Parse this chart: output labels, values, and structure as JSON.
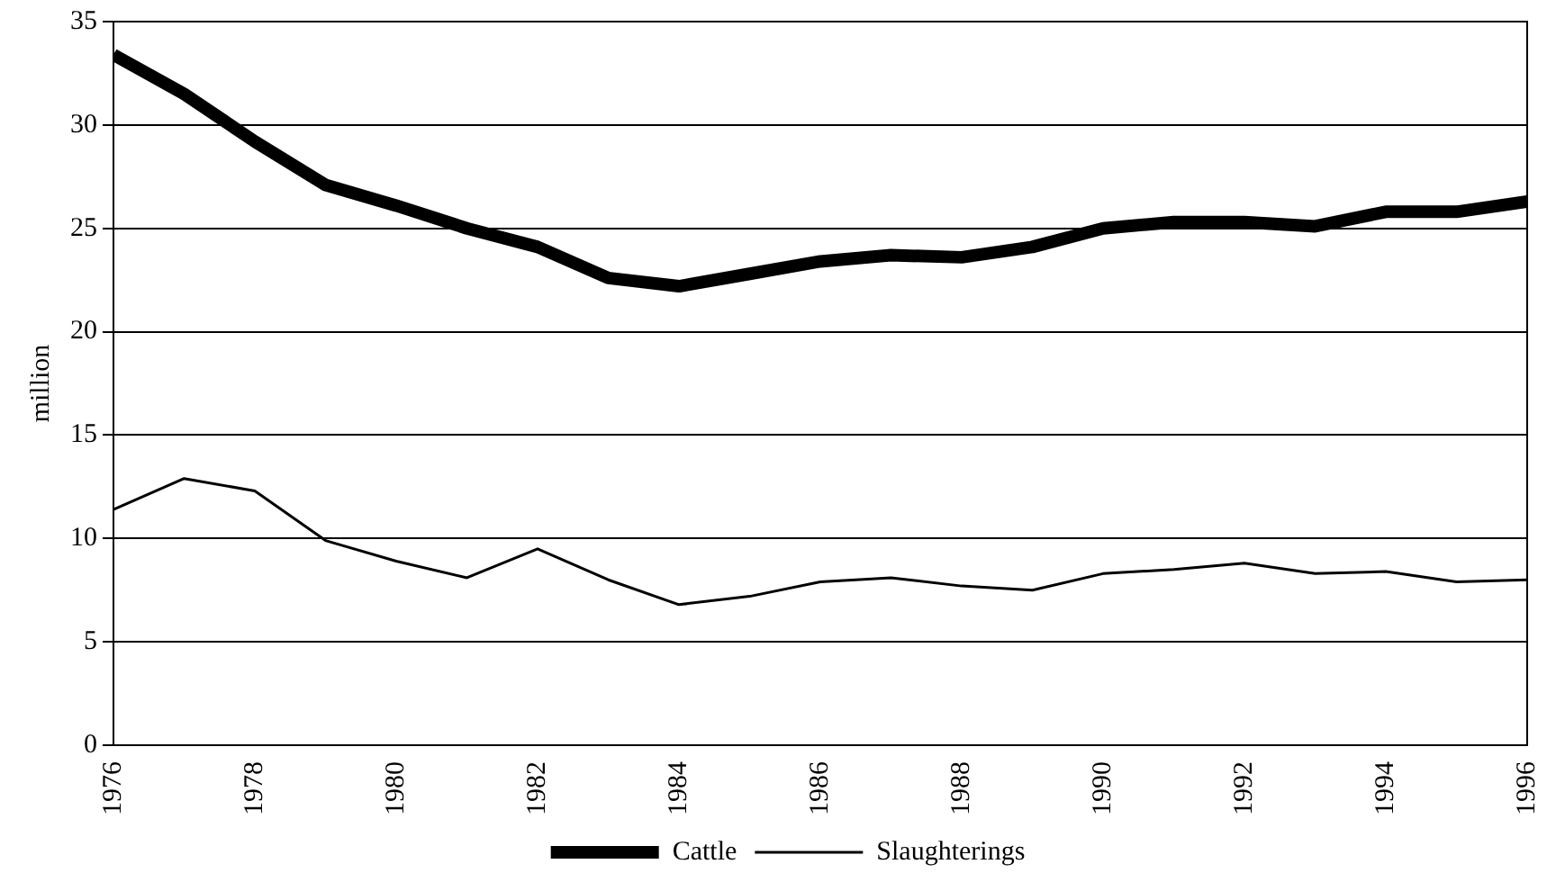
{
  "chart_data": {
    "type": "line",
    "ylabel": "million",
    "x": [
      1976,
      1977,
      1978,
      1979,
      1980,
      1981,
      1982,
      1983,
      1984,
      1985,
      1986,
      1987,
      1988,
      1989,
      1990,
      1991,
      1992,
      1993,
      1994,
      1995,
      1996
    ],
    "series": [
      {
        "name": "Cattle",
        "color": "#000000",
        "values": [
          33.4,
          31.5,
          29.2,
          27.1,
          26.1,
          25.0,
          24.1,
          22.6,
          22.2,
          22.8,
          23.4,
          23.7,
          23.6,
          24.1,
          25.0,
          25.3,
          25.3,
          25.1,
          25.8,
          25.8,
          26.3
        ]
      },
      {
        "name": "Slaughterings",
        "color": "#000000",
        "values": [
          11.4,
          12.9,
          12.3,
          9.9,
          8.9,
          8.1,
          9.5,
          8.0,
          6.8,
          7.2,
          7.9,
          8.1,
          7.7,
          7.5,
          8.3,
          8.5,
          8.8,
          8.3,
          8.4,
          7.9,
          8.0
        ]
      }
    ],
    "xlim": [
      1976,
      1996
    ],
    "xticks": [
      1976,
      1978,
      1980,
      1982,
      1984,
      1986,
      1988,
      1990,
      1992,
      1994,
      1996
    ],
    "ylim": [
      0,
      35
    ],
    "yticks": [
      0,
      5,
      10,
      15,
      20,
      25,
      30,
      35
    ],
    "grid": "y",
    "legend": "bottom",
    "marker": "none",
    "line_style": "solid"
  }
}
